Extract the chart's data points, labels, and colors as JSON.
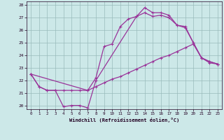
{
  "xlabel": "Windchill (Refroidissement éolien,°C)",
  "bg_color": "#cce8e8",
  "line_color": "#993399",
  "xlim": [
    -0.5,
    23.5
  ],
  "ylim": [
    19.7,
    28.3
  ],
  "yticks": [
    20,
    21,
    22,
    23,
    24,
    25,
    26,
    27,
    28
  ],
  "xticks": [
    0,
    1,
    2,
    3,
    4,
    5,
    6,
    7,
    8,
    9,
    10,
    11,
    12,
    13,
    14,
    15,
    16,
    17,
    18,
    19,
    20,
    21,
    22,
    23
  ],
  "line1_x": [
    0,
    1,
    2,
    3,
    4,
    5,
    6,
    7,
    8,
    13,
    14,
    15,
    16,
    17,
    18,
    19,
    20,
    21,
    22,
    23
  ],
  "line1_y": [
    22.5,
    21.5,
    21.2,
    21.2,
    19.9,
    20.0,
    20.0,
    19.8,
    22.0,
    27.1,
    27.8,
    27.4,
    27.4,
    27.2,
    26.4,
    26.3,
    25.0,
    23.8,
    23.5,
    23.3
  ],
  "line2_x": [
    0,
    1,
    2,
    3,
    4,
    5,
    6,
    7,
    8,
    9,
    10,
    11,
    12,
    13,
    14,
    15,
    16,
    17,
    18,
    19,
    20,
    21,
    22,
    23
  ],
  "line2_y": [
    22.5,
    21.5,
    21.2,
    21.2,
    21.2,
    21.2,
    21.2,
    21.2,
    21.5,
    21.8,
    22.1,
    22.3,
    22.6,
    22.9,
    23.2,
    23.5,
    23.8,
    24.0,
    24.3,
    24.6,
    24.9,
    23.8,
    23.4,
    23.3
  ],
  "line3_x": [
    0,
    7,
    8,
    9,
    10,
    11,
    12,
    13,
    14,
    15,
    16,
    17,
    18,
    19,
    20,
    21,
    22,
    23
  ],
  "line3_y": [
    22.5,
    21.2,
    22.2,
    24.7,
    24.9,
    26.3,
    26.9,
    27.1,
    27.4,
    27.1,
    27.2,
    27.0,
    26.4,
    26.2,
    25.0,
    23.8,
    23.5,
    23.3
  ]
}
